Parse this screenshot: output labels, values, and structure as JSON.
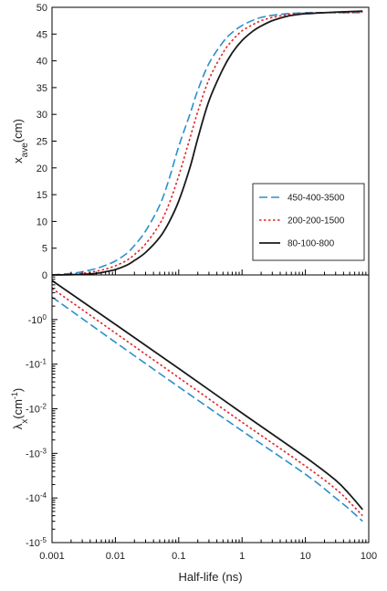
{
  "chart_data": [
    {
      "type": "line",
      "xlabel": "Half-life (ns)",
      "ylabel_main": "x",
      "ylabel_sub": "ave",
      "ylabel_unit": "(cm)",
      "xscale": "log",
      "xlim": [
        0.001,
        100
      ],
      "ylim": [
        0,
        50
      ],
      "yticks": [
        "0",
        "5",
        "10",
        "15",
        "20",
        "25",
        "30",
        "35",
        "40",
        "45",
        "50"
      ],
      "grid": false,
      "legend_position": "right",
      "series": [
        {
          "name": "450-400-3500",
          "color": "#2a8fcc",
          "dash": "dashed",
          "x": [
            0.001,
            0.002,
            0.003,
            0.005,
            0.007,
            0.01,
            0.015,
            0.02,
            0.03,
            0.05,
            0.07,
            0.1,
            0.15,
            0.2,
            0.3,
            0.5,
            0.7,
            1,
            1.5,
            2,
            3,
            5,
            7,
            10,
            20,
            30,
            50,
            80
          ],
          "y": [
            0,
            0.3,
            0.6,
            1.2,
            1.8,
            2.6,
            4.0,
            5.5,
            8.2,
            13.0,
            17.8,
            24.0,
            30.0,
            34.5,
            39.5,
            43.5,
            45.3,
            46.6,
            47.6,
            48.1,
            48.5,
            48.8,
            48.9,
            49.0,
            49.0,
            49.0,
            49.0,
            49.0
          ]
        },
        {
          "name": "200-200-1500",
          "color": "#e0262a",
          "dash": "dotted",
          "x": [
            0.001,
            0.002,
            0.003,
            0.005,
            0.007,
            0.01,
            0.015,
            0.02,
            0.03,
            0.05,
            0.07,
            0.1,
            0.15,
            0.2,
            0.3,
            0.5,
            0.7,
            1,
            1.5,
            2,
            3,
            5,
            7,
            10,
            20,
            30,
            50,
            80
          ],
          "y": [
            0,
            0.1,
            0.3,
            0.7,
            1.1,
            1.7,
            2.7,
            3.8,
            5.8,
            9.5,
            13.2,
            18.5,
            25.5,
            30.5,
            36.5,
            41.5,
            43.8,
            45.6,
            46.8,
            47.5,
            48.1,
            48.6,
            48.8,
            48.9,
            49.0,
            49.0,
            49.0,
            49.1
          ]
        },
        {
          "name": "80-100-800",
          "color": "#1a1a1a",
          "dash": "solid",
          "x": [
            0.001,
            0.002,
            0.003,
            0.005,
            0.007,
            0.01,
            0.015,
            0.02,
            0.03,
            0.05,
            0.07,
            0.1,
            0.15,
            0.2,
            0.3,
            0.5,
            0.7,
            1,
            1.5,
            2,
            3,
            5,
            7,
            10,
            20,
            30,
            50,
            80
          ],
          "y": [
            0,
            0.05,
            0.1,
            0.3,
            0.6,
            1.0,
            1.8,
            2.7,
            4.2,
            7.0,
            9.8,
            13.8,
            20.0,
            25.5,
            32.5,
            38.5,
            41.5,
            43.8,
            45.6,
            46.5,
            47.5,
            48.3,
            48.6,
            48.8,
            49.0,
            49.1,
            49.2,
            49.3
          ]
        }
      ]
    },
    {
      "type": "line",
      "xlabel": "Half-life (ns)",
      "ylabel_main": "λ",
      "ylabel_sub": "x",
      "ylabel_unit": "(cm",
      "ylabel_sup": "-1",
      "ylabel_close": ")",
      "xscale": "log",
      "xlim": [
        0.001,
        100
      ],
      "yscale": "log",
      "ylim": [
        -1e-05,
        -10
      ],
      "xtick_labels": [
        "0.001",
        "0.01",
        "0.1",
        "1",
        "10",
        "100"
      ],
      "ytick_bases": [
        "-10",
        "-10",
        "-10",
        "-10",
        "-10",
        "-10"
      ],
      "ytick_exps": [
        "0",
        "-1",
        "-2",
        "-3",
        "-4",
        "-5"
      ],
      "grid": false,
      "series": [
        {
          "name": "450-400-3500",
          "color": "#2a8fcc",
          "dash": "dashed",
          "x": [
            0.001,
            0.01,
            0.1,
            1,
            10,
            30,
            50,
            80
          ],
          "y": [
            -3.2,
            -0.31,
            -0.031,
            -0.0032,
            -0.00034,
            -0.0001,
            -5.5e-05,
            -3e-05
          ]
        },
        {
          "name": "200-200-1500",
          "color": "#e0262a",
          "dash": "dotted",
          "x": [
            0.001,
            0.01,
            0.1,
            1,
            10,
            30,
            50,
            80
          ],
          "y": [
            -5.0,
            -0.5,
            -0.05,
            -0.005,
            -0.00052,
            -0.00016,
            -8e-05,
            -4e-05
          ]
        },
        {
          "name": "80-100-800",
          "color": "#1a1a1a",
          "dash": "solid",
          "x": [
            0.001,
            0.01,
            0.1,
            1,
            10,
            30,
            50,
            80
          ],
          "y": [
            -7.5,
            -0.78,
            -0.08,
            -0.008,
            -0.00082,
            -0.00025,
            -0.00012,
            -5.5e-05
          ]
        }
      ]
    }
  ]
}
